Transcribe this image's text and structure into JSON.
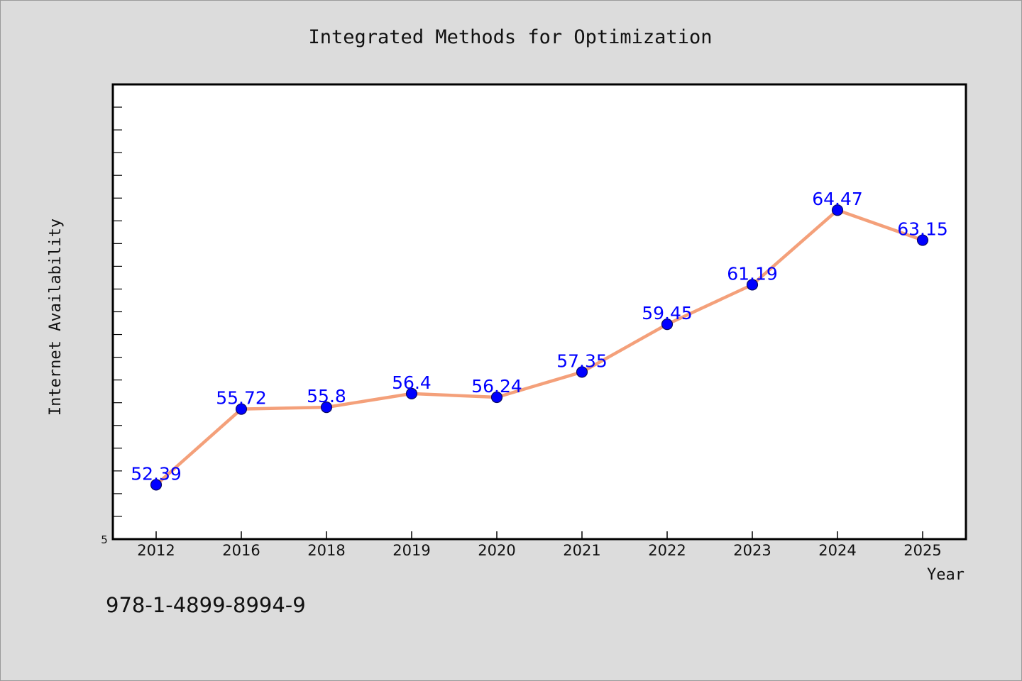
{
  "chart_data": {
    "type": "line",
    "title": "Integrated Methods for Optimization",
    "xlabel": "Year",
    "ylabel": "Internet Availability",
    "categories": [
      "2012",
      "2016",
      "2018",
      "2019",
      "2020",
      "2021",
      "2022",
      "2023",
      "2024",
      "2025"
    ],
    "series": [
      {
        "values": [
          52.39,
          55.72,
          55.8,
          56.4,
          56.24,
          57.35,
          59.45,
          61.19,
          64.47,
          63.15
        ],
        "labels": [
          "52.39",
          "55.72",
          "55.8",
          "56.4",
          "56.24",
          "57.35",
          "59.45",
          "61.19",
          "64.47",
          "63.15"
        ]
      }
    ],
    "ylim": [
      50,
      70
    ],
    "y_tick_step": 1,
    "y_min_label": "5",
    "grid": false,
    "legend": "none",
    "colors": {
      "line": "#f4a07a",
      "marker": "#0000ff",
      "marker_edge": "#0a0a60",
      "data_label": "#0000ff",
      "plot_bg": "#ffffff",
      "page_bg": "#dcdcdc"
    }
  },
  "footnote": "978-1-4899-8994-9"
}
